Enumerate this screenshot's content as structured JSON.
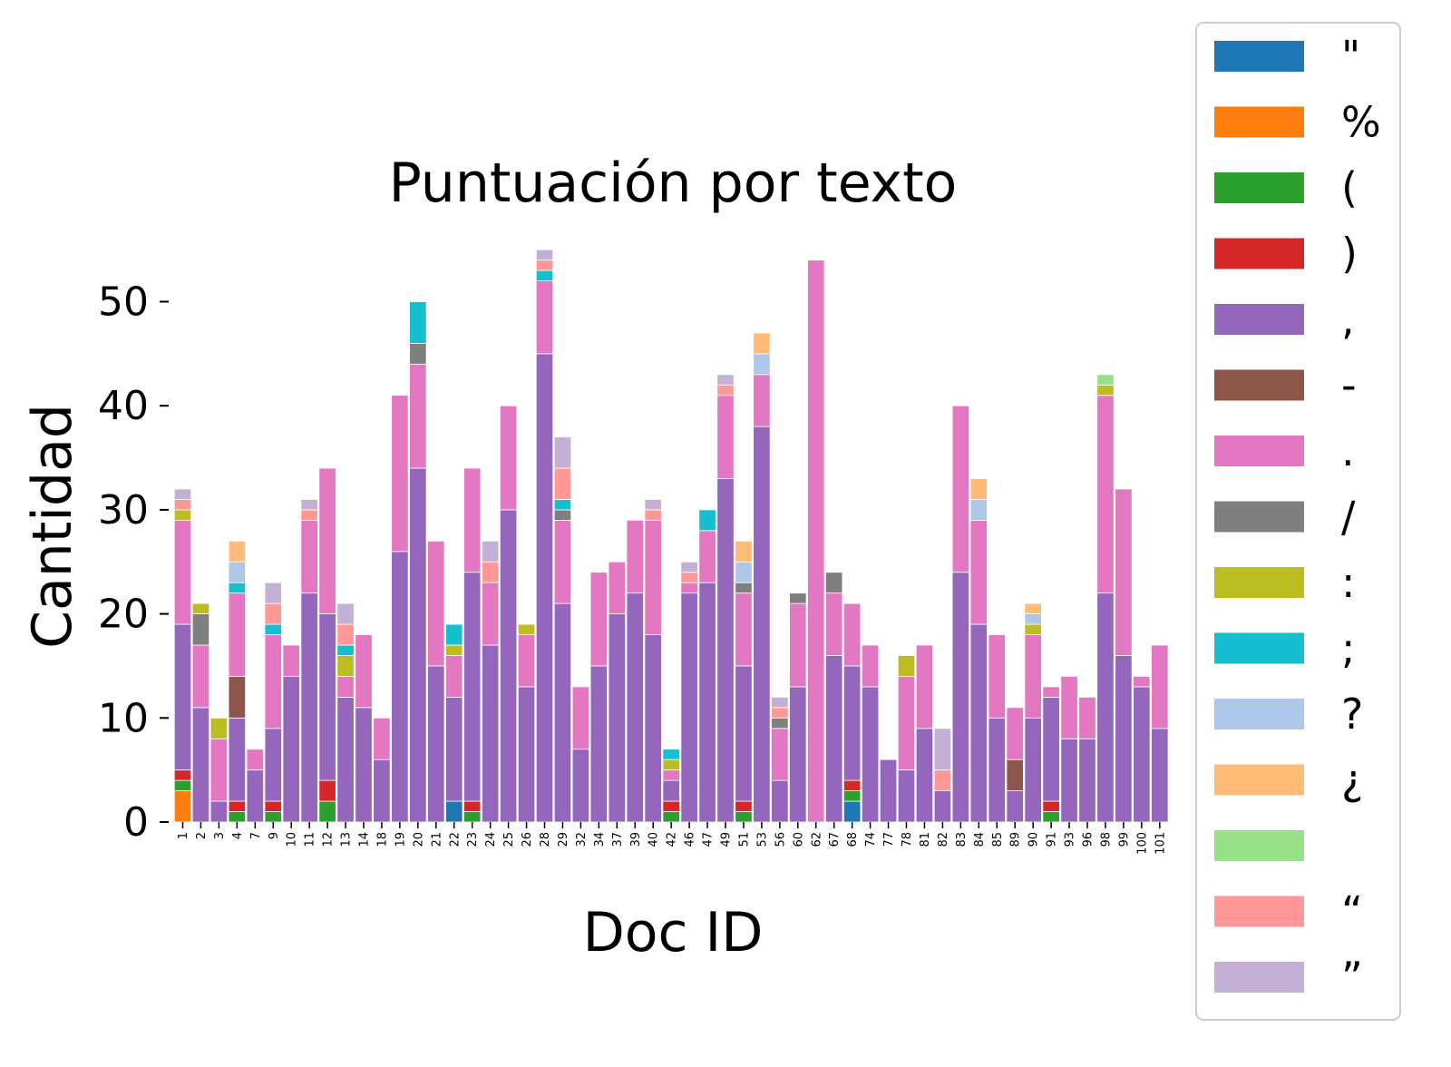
{
  "chart_data": {
    "type": "bar",
    "stacked": true,
    "title": "Puntuación por texto",
    "xlabel": "Doc ID",
    "ylabel": "Cantidad",
    "ylim": [
      0,
      57
    ],
    "yticks": [
      0,
      10,
      20,
      30,
      40,
      50
    ],
    "grid": false,
    "legend_position": "right",
    "categories": [
      "1",
      "2",
      "3",
      "4",
      "7",
      "9",
      "10",
      "11",
      "12",
      "13",
      "14",
      "18",
      "19",
      "20",
      "21",
      "22",
      "23",
      "24",
      "25",
      "26",
      "28",
      "29",
      "32",
      "34",
      "37",
      "39",
      "40",
      "42",
      "46",
      "47",
      "49",
      "51",
      "53",
      "56",
      "60",
      "62",
      "67",
      "68",
      "74",
      "77",
      "78",
      "81",
      "82",
      "83",
      "84",
      "85",
      "89",
      "90",
      "91",
      "93",
      "96",
      "98",
      "99",
      "100",
      "101"
    ],
    "series": [
      {
        "name": "\"",
        "color": "#1f77b4",
        "values": [
          0,
          0,
          0,
          0,
          0,
          0,
          0,
          0,
          0,
          0,
          0,
          0,
          0,
          0,
          0,
          2,
          0,
          0,
          0,
          0,
          0,
          0,
          0,
          0,
          0,
          0,
          0,
          0,
          0,
          0,
          0,
          0,
          0,
          0,
          0,
          0,
          0,
          2,
          0,
          0,
          0,
          0,
          0,
          0,
          0,
          0,
          0,
          0,
          0,
          0,
          0,
          0,
          0,
          0,
          0
        ]
      },
      {
        "name": "%",
        "color": "#ff7f0e",
        "values": [
          3,
          0,
          0,
          0,
          0,
          0,
          0,
          0,
          0,
          0,
          0,
          0,
          0,
          0,
          0,
          0,
          0,
          0,
          0,
          0,
          0,
          0,
          0,
          0,
          0,
          0,
          0,
          0,
          0,
          0,
          0,
          0,
          0,
          0,
          0,
          0,
          0,
          0,
          0,
          0,
          0,
          0,
          0,
          0,
          0,
          0,
          0,
          0,
          0,
          0,
          0,
          0,
          0,
          0,
          0
        ]
      },
      {
        "name": "(",
        "color": "#2ca02c",
        "values": [
          1,
          0,
          0,
          1,
          0,
          1,
          0,
          0,
          2,
          0,
          0,
          0,
          0,
          0,
          0,
          0,
          1,
          0,
          0,
          0,
          0,
          0,
          0,
          0,
          0,
          0,
          0,
          1,
          0,
          0,
          0,
          1,
          0,
          0,
          0,
          0,
          0,
          1,
          0,
          0,
          0,
          0,
          0,
          0,
          0,
          0,
          0,
          0,
          1,
          0,
          0,
          0,
          0,
          0,
          0
        ]
      },
      {
        "name": ")",
        "color": "#d62728",
        "values": [
          1,
          0,
          0,
          1,
          0,
          1,
          0,
          0,
          2,
          0,
          0,
          0,
          0,
          0,
          0,
          0,
          1,
          0,
          0,
          0,
          0,
          0,
          0,
          0,
          0,
          0,
          0,
          1,
          0,
          0,
          0,
          1,
          0,
          0,
          0,
          0,
          0,
          1,
          0,
          0,
          0,
          0,
          0,
          0,
          0,
          0,
          0,
          0,
          1,
          0,
          0,
          0,
          0,
          0,
          0
        ]
      },
      {
        "name": ",",
        "color": "#9467bd",
        "values": [
          14,
          11,
          2,
          8,
          5,
          7,
          14,
          22,
          16,
          12,
          11,
          6,
          26,
          34,
          15,
          10,
          22,
          17,
          30,
          13,
          45,
          21,
          7,
          15,
          20,
          22,
          18,
          2,
          22,
          23,
          33,
          13,
          38,
          4,
          13,
          0,
          16,
          11,
          13,
          6,
          5,
          9,
          3,
          24,
          19,
          10,
          3,
          10,
          10,
          8,
          8,
          22,
          16,
          13,
          9
        ]
      },
      {
        "name": "-",
        "color": "#8c564b",
        "values": [
          0,
          0,
          0,
          4,
          0,
          0,
          0,
          0,
          0,
          0,
          0,
          0,
          0,
          0,
          0,
          0,
          0,
          0,
          0,
          0,
          0,
          0,
          0,
          0,
          0,
          0,
          0,
          0,
          0,
          0,
          0,
          0,
          0,
          0,
          0,
          0,
          0,
          0,
          0,
          0,
          0,
          0,
          0,
          0,
          0,
          0,
          3,
          0,
          0,
          0,
          0,
          0,
          0,
          0,
          0
        ]
      },
      {
        "name": ".",
        "color": "#e377c2",
        "values": [
          10,
          6,
          6,
          8,
          2,
          9,
          3,
          7,
          14,
          2,
          7,
          4,
          15,
          10,
          12,
          4,
          10,
          6,
          10,
          5,
          7,
          8,
          6,
          9,
          5,
          7,
          11,
          1,
          1,
          5,
          8,
          7,
          5,
          5,
          8,
          54,
          6,
          6,
          4,
          0,
          9,
          8,
          0,
          16,
          10,
          8,
          5,
          8,
          1,
          6,
          4,
          19,
          16,
          1,
          8
        ]
      },
      {
        "name": "/",
        "color": "#7f7f7f",
        "values": [
          0,
          3,
          0,
          0,
          0,
          0,
          0,
          0,
          0,
          0,
          0,
          0,
          0,
          2,
          0,
          0,
          0,
          0,
          0,
          0,
          0,
          1,
          0,
          0,
          0,
          0,
          0,
          0,
          0,
          0,
          0,
          1,
          0,
          1,
          1,
          0,
          2,
          0,
          0,
          0,
          0,
          0,
          0,
          0,
          0,
          0,
          0,
          0,
          0,
          0,
          0,
          0,
          0,
          0,
          0
        ]
      },
      {
        "name": ":",
        "color": "#bcbd22",
        "values": [
          1,
          1,
          2,
          0,
          0,
          0,
          0,
          0,
          0,
          2,
          0,
          0,
          0,
          0,
          0,
          1,
          0,
          0,
          0,
          1,
          0,
          0,
          0,
          0,
          0,
          0,
          0,
          1,
          0,
          0,
          0,
          0,
          0,
          0,
          0,
          0,
          0,
          0,
          0,
          0,
          2,
          0,
          0,
          0,
          0,
          0,
          0,
          1,
          0,
          0,
          0,
          1,
          0,
          0,
          0
        ]
      },
      {
        "name": ";",
        "color": "#17becf",
        "values": [
          0,
          0,
          0,
          1,
          0,
          1,
          0,
          0,
          0,
          1,
          0,
          0,
          0,
          4,
          0,
          2,
          0,
          0,
          0,
          0,
          1,
          1,
          0,
          0,
          0,
          0,
          0,
          1,
          0,
          2,
          0,
          0,
          0,
          0,
          0,
          0,
          0,
          0,
          0,
          0,
          0,
          0,
          0,
          0,
          0,
          0,
          0,
          0,
          0,
          0,
          0,
          0,
          0,
          0,
          0
        ]
      },
      {
        "name": "?",
        "color": "#aec7e8",
        "values": [
          0,
          0,
          0,
          2,
          0,
          0,
          0,
          0,
          0,
          0,
          0,
          0,
          0,
          0,
          0,
          0,
          0,
          0,
          0,
          0,
          0,
          0,
          0,
          0,
          0,
          0,
          0,
          0,
          0,
          0,
          0,
          2,
          2,
          0,
          0,
          0,
          0,
          0,
          0,
          0,
          0,
          0,
          0,
          0,
          2,
          0,
          0,
          1,
          0,
          0,
          0,
          0,
          0,
          0,
          0
        ]
      },
      {
        "name": "¿",
        "color": "#ffbb78",
        "values": [
          0,
          0,
          0,
          2,
          0,
          0,
          0,
          0,
          0,
          0,
          0,
          0,
          0,
          0,
          0,
          0,
          0,
          0,
          0,
          0,
          0,
          0,
          0,
          0,
          0,
          0,
          0,
          0,
          0,
          0,
          0,
          2,
          2,
          0,
          0,
          0,
          0,
          0,
          0,
          0,
          0,
          0,
          0,
          0,
          2,
          0,
          0,
          1,
          0,
          0,
          0,
          0,
          0,
          0,
          0
        ]
      },
      {
        "name": "",
        "color": "#98df8a",
        "values": [
          0,
          0,
          0,
          0,
          0,
          0,
          0,
          0,
          0,
          0,
          0,
          0,
          0,
          0,
          0,
          0,
          0,
          0,
          0,
          0,
          0,
          0,
          0,
          0,
          0,
          0,
          0,
          0,
          0,
          0,
          0,
          0,
          0,
          0,
          0,
          0,
          0,
          0,
          0,
          0,
          0,
          0,
          0,
          0,
          0,
          0,
          0,
          0,
          0,
          0,
          0,
          1,
          0,
          0,
          0
        ]
      },
      {
        "name": "“",
        "color": "#ff9896",
        "values": [
          1,
          0,
          0,
          0,
          0,
          2,
          0,
          1,
          0,
          2,
          0,
          0,
          0,
          0,
          0,
          0,
          0,
          2,
          0,
          0,
          1,
          3,
          0,
          0,
          0,
          0,
          1,
          0,
          1,
          0,
          1,
          0,
          0,
          1,
          0,
          0,
          0,
          0,
          0,
          0,
          0,
          0,
          2,
          0,
          0,
          0,
          0,
          0,
          0,
          0,
          0,
          0,
          0,
          0,
          0
        ]
      },
      {
        "name": "”",
        "color": "#c5b0d5",
        "values": [
          1,
          0,
          0,
          0,
          0,
          2,
          0,
          1,
          0,
          2,
          0,
          0,
          0,
          0,
          0,
          0,
          0,
          2,
          0,
          0,
          1,
          3,
          0,
          0,
          0,
          0,
          1,
          0,
          1,
          0,
          1,
          0,
          0,
          1,
          0,
          0,
          0,
          0,
          0,
          0,
          0,
          0,
          4,
          0,
          0,
          0,
          0,
          0,
          0,
          0,
          0,
          0,
          0,
          0,
          0
        ]
      }
    ]
  }
}
